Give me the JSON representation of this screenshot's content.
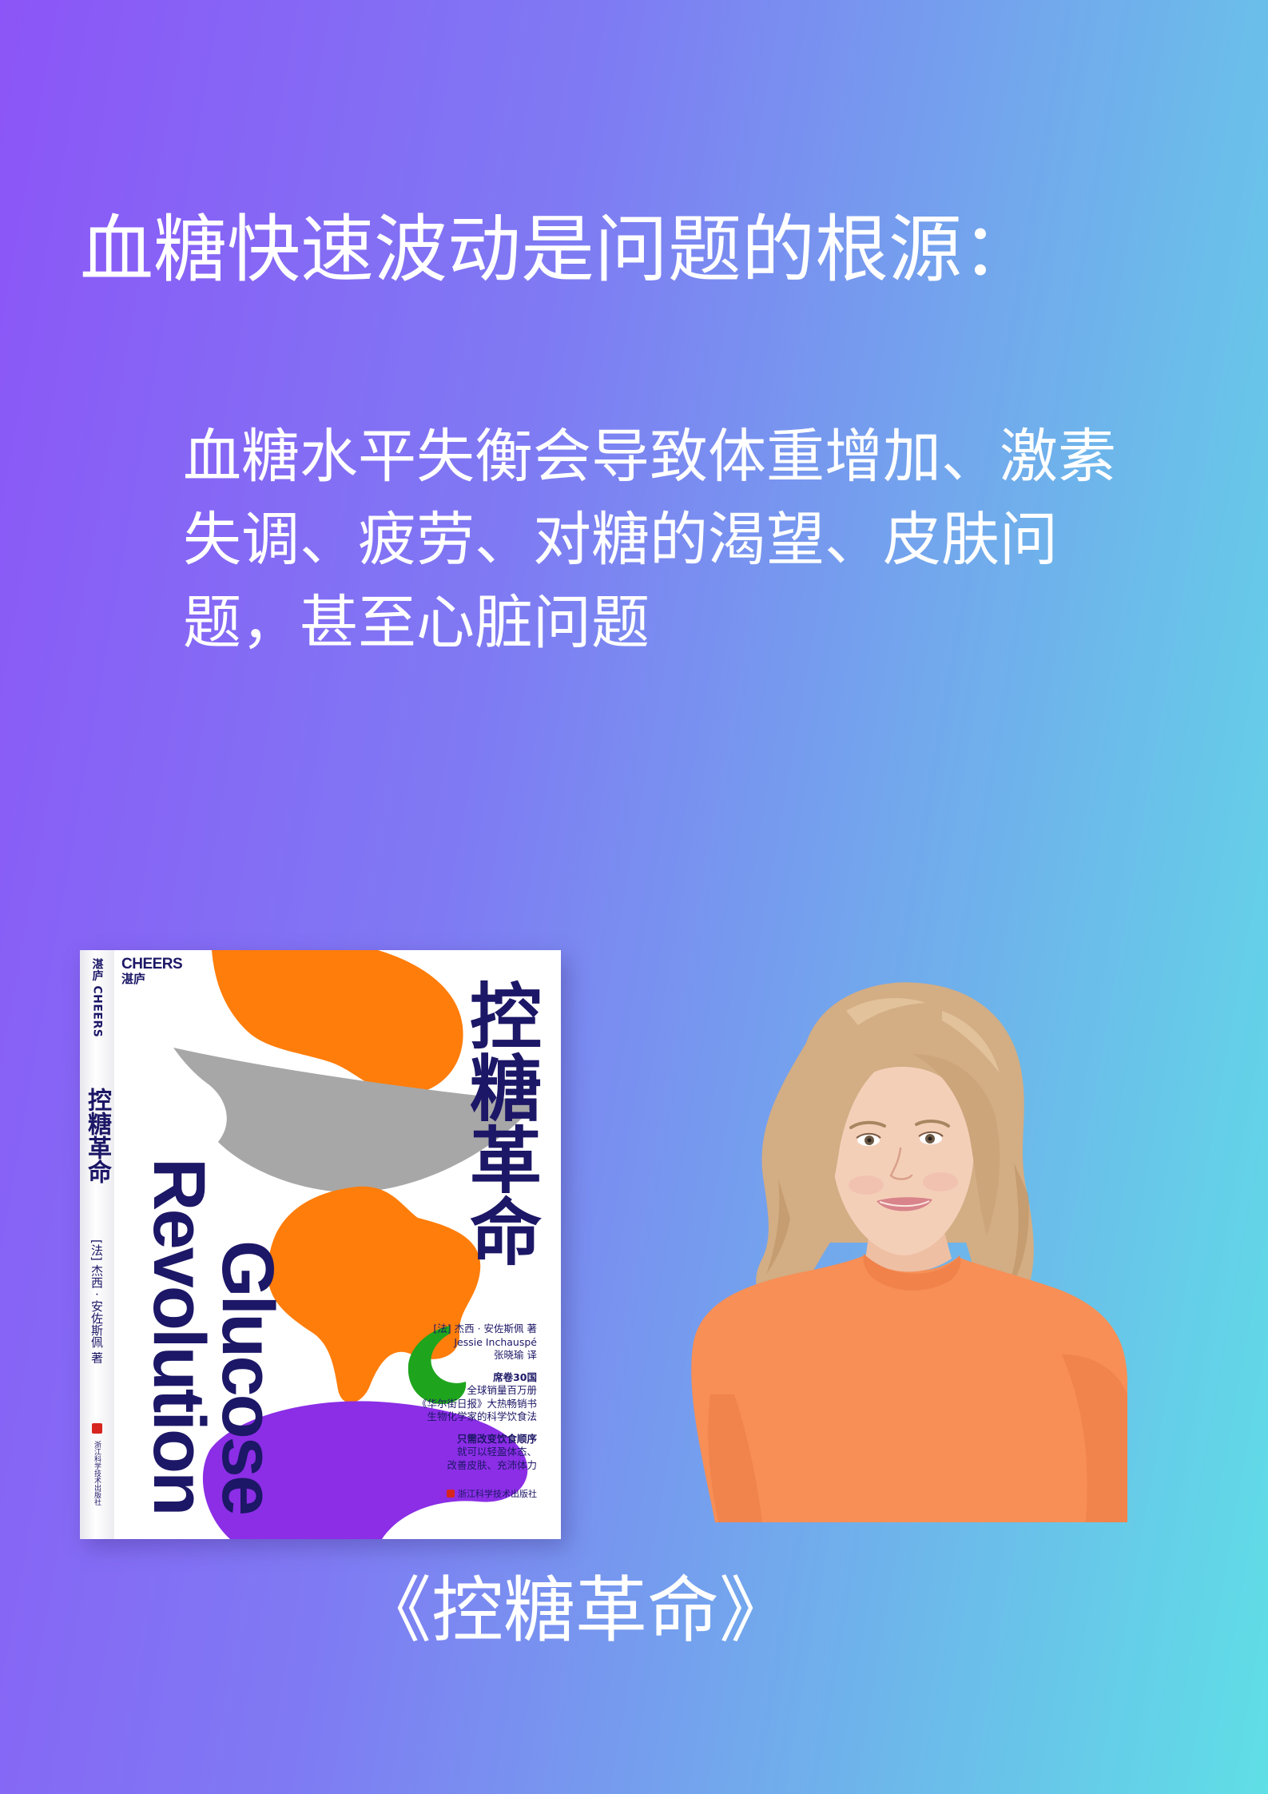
{
  "page": {
    "title": "血糖快速波动是问题的根源：",
    "body": "血糖水平失衡会导致体重增加、激素失调、疲劳、对糖的渴望、皮肤问题，甚至心脏问题",
    "caption": "《控糖革命》"
  },
  "book": {
    "spine": {
      "brand": "湛庐 CHEERS",
      "title": "控糖革命",
      "author": "[法] 杰西 · 安佐斯佩 著",
      "publisher": "浙江科学技术出版社"
    },
    "cover": {
      "brand_en": "CHEERS",
      "brand_cn": "湛庐",
      "title_cn": "控糖革命",
      "title_en_line1": "Glucose",
      "title_en_line2": "Revolution",
      "author_cn": "[法] 杰西 · 安佐斯佩 著",
      "author_en": "Jessie Inchauspé",
      "translator": "张晓瑜 译",
      "blurbs": [
        "席卷30国",
        "全球销量百万册",
        "《华尔街日报》大热畅销书",
        "生物化学家的科学饮食法"
      ],
      "promises": [
        "只需改变饮食顺序",
        "就可以轻盈体态、",
        "改善皮肤、充沛体力"
      ],
      "publisher": "浙江科学技术出版社"
    }
  },
  "colors": {
    "background_left": "#8c55f7",
    "background_right": "#5fdfe6",
    "text": "#ffffff",
    "cover_ink": "#1c1766",
    "blob_orange": "#ff7d0a",
    "blob_gray": "#a7a7a7",
    "blob_green": "#1fa51d",
    "blob_purple": "#8b2ee6",
    "sweater": "#f78f56",
    "hair": "#d3ad84"
  }
}
